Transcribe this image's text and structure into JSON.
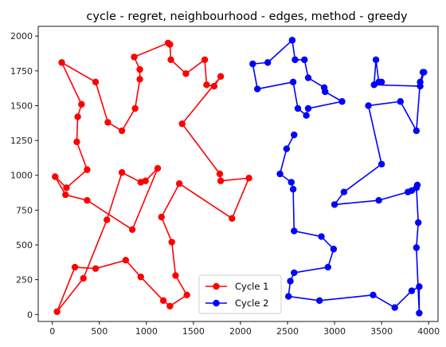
{
  "chart_data": {
    "type": "line",
    "title": "cycle - regret, neighbourhood - edges, method - greedy",
    "xlabel": "",
    "ylabel": "",
    "xlim": [
      -150,
      4100
    ],
    "ylim": [
      -50,
      2070
    ],
    "xticks": [
      0,
      500,
      1000,
      1500,
      2000,
      2500,
      3000,
      3500,
      4000
    ],
    "yticks": [
      0,
      250,
      500,
      750,
      1000,
      1250,
      1500,
      1750,
      2000
    ],
    "grid": false,
    "legend": "bottom-center",
    "series": [
      {
        "name": "Cycle 1",
        "color": "#ff0000",
        "points": [
          [
            1250,
            1940
          ],
          [
            1260,
            1830
          ],
          [
            1420,
            1730
          ],
          [
            1620,
            1830
          ],
          [
            1640,
            1650
          ],
          [
            1720,
            1640
          ],
          [
            1790,
            1710
          ],
          [
            1380,
            1370
          ],
          [
            1780,
            1010
          ],
          [
            1790,
            960
          ],
          [
            2090,
            980
          ],
          [
            1910,
            690
          ],
          [
            1350,
            940
          ],
          [
            1160,
            700
          ],
          [
            1270,
            520
          ],
          [
            1310,
            280
          ],
          [
            1430,
            140
          ],
          [
            1250,
            60
          ],
          [
            1180,
            100
          ],
          [
            940,
            270
          ],
          [
            780,
            390
          ],
          [
            460,
            330
          ],
          [
            240,
            340
          ],
          [
            50,
            20
          ],
          [
            330,
            260
          ],
          [
            580,
            680
          ],
          [
            740,
            1020
          ],
          [
            940,
            950
          ],
          [
            990,
            960
          ],
          [
            1120,
            1050
          ],
          [
            850,
            610
          ],
          [
            370,
            820
          ],
          [
            140,
            860
          ],
          [
            30,
            990
          ],
          [
            150,
            910
          ],
          [
            370,
            1040
          ],
          [
            260,
            1240
          ],
          [
            270,
            1420
          ],
          [
            310,
            1510
          ],
          [
            100,
            1810
          ],
          [
            460,
            1670
          ],
          [
            590,
            1380
          ],
          [
            740,
            1320
          ],
          [
            880,
            1480
          ],
          [
            930,
            1690
          ],
          [
            930,
            1760
          ],
          [
            870,
            1850
          ],
          [
            1230,
            1950
          ]
        ]
      },
      {
        "name": "Cycle 2",
        "color": "#0000ff",
        "points": [
          [
            2550,
            1970
          ],
          [
            2580,
            1830
          ],
          [
            2680,
            1830
          ],
          [
            2720,
            1700
          ],
          [
            2890,
            1630
          ],
          [
            2900,
            1600
          ],
          [
            3080,
            1530
          ],
          [
            2720,
            1480
          ],
          [
            2700,
            1430
          ],
          [
            2610,
            1480
          ],
          [
            2560,
            1670
          ],
          [
            2180,
            1620
          ],
          [
            2130,
            1800
          ],
          [
            2290,
            1810
          ],
          [
            2550,
            1970
          ]
        ]
      },
      {
        "name": "Cycle 2",
        "color": "#0000ff",
        "points": [
          [
            2570,
            1290
          ],
          [
            2490,
            1190
          ],
          [
            2420,
            1010
          ],
          [
            2540,
            950
          ],
          [
            2560,
            900
          ],
          [
            2570,
            600
          ],
          [
            2860,
            560
          ],
          [
            2990,
            470
          ],
          [
            2930,
            340
          ],
          [
            2570,
            300
          ],
          [
            2530,
            240
          ],
          [
            2510,
            130
          ],
          [
            2840,
            100
          ],
          [
            3410,
            140
          ],
          [
            3640,
            50
          ],
          [
            3820,
            170
          ],
          [
            3900,
            200
          ],
          [
            3900,
            10
          ],
          [
            3870,
            480
          ],
          [
            3890,
            660
          ],
          [
            3870,
            910
          ],
          [
            3880,
            930
          ],
          [
            3820,
            890
          ],
          [
            3780,
            880
          ],
          [
            3470,
            820
          ],
          [
            3000,
            790
          ],
          [
            3100,
            880
          ],
          [
            3500,
            1080
          ],
          [
            3360,
            1500
          ],
          [
            3700,
            1530
          ],
          [
            3870,
            1320
          ],
          [
            3910,
            1670
          ],
          [
            3940,
            1740
          ],
          [
            3950,
            1740
          ],
          [
            3910,
            1640
          ],
          [
            3420,
            1650
          ],
          [
            3440,
            1830
          ],
          [
            3470,
            1670
          ],
          [
            3500,
            1670
          ]
        ]
      }
    ]
  }
}
